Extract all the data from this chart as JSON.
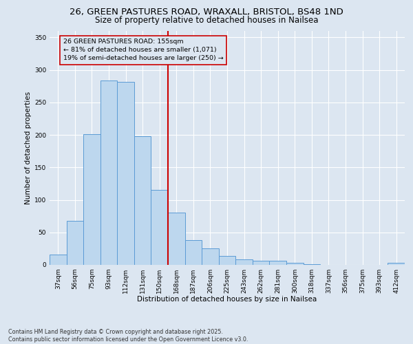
{
  "title_line1": "26, GREEN PASTURES ROAD, WRAXALL, BRISTOL, BS48 1ND",
  "title_line2": "Size of property relative to detached houses in Nailsea",
  "xlabel": "Distribution of detached houses by size in Nailsea",
  "ylabel": "Number of detached properties",
  "categories": [
    "37sqm",
    "56sqm",
    "75sqm",
    "93sqm",
    "112sqm",
    "131sqm",
    "150sqm",
    "168sqm",
    "187sqm",
    "206sqm",
    "225sqm",
    "243sqm",
    "262sqm",
    "281sqm",
    "300sqm",
    "318sqm",
    "337sqm",
    "356sqm",
    "375sqm",
    "393sqm",
    "412sqm"
  ],
  "values": [
    16,
    68,
    201,
    284,
    282,
    198,
    115,
    80,
    38,
    25,
    14,
    9,
    6,
    6,
    3,
    1,
    0,
    0,
    0,
    0,
    3
  ],
  "bar_color": "#BDD7EE",
  "bar_edge_color": "#5B9BD5",
  "background_color": "#DCE6F1",
  "grid_color": "#FFFFFF",
  "ref_line_x": 6.5,
  "ref_line_label": "26 GREEN PASTURES ROAD: 155sqm",
  "ref_line_pct_smaller": "81% of detached houses are smaller (1,071)",
  "ref_line_pct_larger": "19% of semi-detached houses are larger (250)",
  "ref_line_color": "#CC0000",
  "annotation_box_color": "#CC0000",
  "ylim": [
    0,
    360
  ],
  "yticks": [
    0,
    50,
    100,
    150,
    200,
    250,
    300,
    350
  ],
  "footnote": "Contains HM Land Registry data © Crown copyright and database right 2025.\nContains public sector information licensed under the Open Government Licence v3.0.",
  "title_fontsize": 9.5,
  "subtitle_fontsize": 8.5,
  "axis_label_fontsize": 7.5,
  "tick_fontsize": 6.5,
  "annotation_fontsize": 6.8,
  "footnote_fontsize": 5.8
}
